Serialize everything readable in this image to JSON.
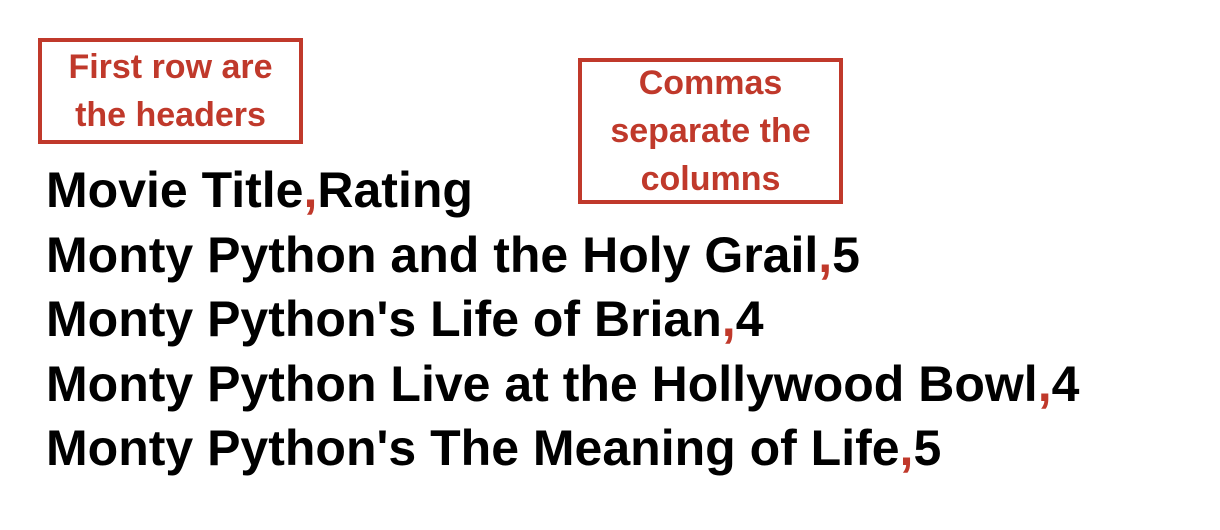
{
  "callouts": {
    "headers": {
      "lines": [
        "First row are",
        "the headers"
      ],
      "color": "#c0392b"
    },
    "columns": {
      "lines": [
        "Commas",
        "separate the",
        "columns"
      ],
      "color": "#c0392b"
    }
  },
  "csv": {
    "delimiter": ",",
    "delimiter_color": "#c0392b",
    "rows": [
      {
        "title": "Movie Title",
        "rating": "Rating"
      },
      {
        "title": "Monty Python and the Holy Grail",
        "rating": "5"
      },
      {
        "title": "Monty Python's Life of Brian",
        "rating": "4"
      },
      {
        "title": "Monty Python Live at the Hollywood Bowl",
        "rating": "4"
      },
      {
        "title": "Monty Python's The Meaning of Life",
        "rating": "5"
      }
    ]
  }
}
